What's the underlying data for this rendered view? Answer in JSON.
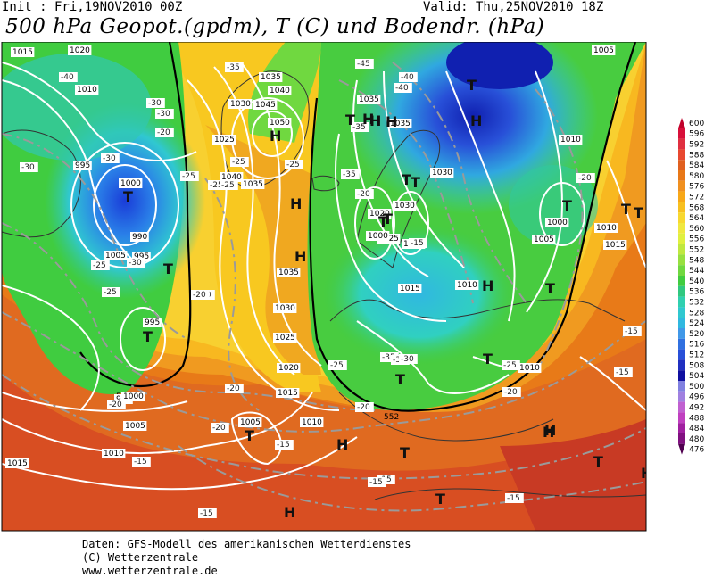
{
  "header": {
    "init": "Init : Fri,19NOV2010 00Z",
    "valid": "Valid: Thu,25NOV2010 18Z",
    "title": "500 hPa Geopot.(gpdm), T (C) und Bodendr. (hPa)"
  },
  "legend": {
    "values": [
      "600",
      "596",
      "592",
      "588",
      "584",
      "580",
      "576",
      "572",
      "568",
      "564",
      "560",
      "556",
      "552",
      "548",
      "544",
      "540",
      "536",
      "532",
      "528",
      "524",
      "520",
      "516",
      "512",
      "508",
      "504",
      "500",
      "496",
      "492",
      "488",
      "484",
      "480",
      "476"
    ],
    "colors": [
      "#c0002a",
      "#d8103a",
      "#e03040",
      "#e84830",
      "#e06020",
      "#e87818",
      "#f09020",
      "#f8a818",
      "#f8c020",
      "#f8d830",
      "#f0e840",
      "#e0f040",
      "#c0e840",
      "#98e040",
      "#70d840",
      "#40cc40",
      "#30c880",
      "#30d0b0",
      "#30c8d0",
      "#30b8e0",
      "#4098e8",
      "#3070e0",
      "#2850d8",
      "#2030c0",
      "#1010a0",
      "#8080e0",
      "#a080e0",
      "#c060d0",
      "#c040c0",
      "#a020a0",
      "#801080",
      "#500050"
    ]
  },
  "isobar_labels": [
    {
      "t": "1015"
    },
    {
      "t": "1020"
    },
    {
      "t": "1010"
    },
    {
      "t": "995"
    },
    {
      "t": "1000"
    },
    {
      "t": "1005"
    },
    {
      "t": "990"
    },
    {
      "t": "995"
    },
    {
      "t": "995"
    },
    {
      "t": "990"
    },
    {
      "t": "1000"
    },
    {
      "t": "1005"
    },
    {
      "t": "1010"
    },
    {
      "t": "1015"
    },
    {
      "t": "1025"
    },
    {
      "t": "1030"
    },
    {
      "t": "1035"
    },
    {
      "t": "1040"
    },
    {
      "t": "1045"
    },
    {
      "t": "1050"
    },
    {
      "t": "1040"
    },
    {
      "t": "1035"
    },
    {
      "t": "1035"
    },
    {
      "t": "1030"
    },
    {
      "t": "1025"
    },
    {
      "t": "1020"
    },
    {
      "t": "1015"
    },
    {
      "t": "1010"
    },
    {
      "t": "1005"
    },
    {
      "t": "1035"
    },
    {
      "t": "1035"
    },
    {
      "t": "1020"
    },
    {
      "t": "1030"
    },
    {
      "t": "1025"
    },
    {
      "t": "1030"
    },
    {
      "t": "1015"
    },
    {
      "t": "1010"
    },
    {
      "t": "1010"
    },
    {
      "t": "1005"
    },
    {
      "t": "1010"
    },
    {
      "t": "1000"
    },
    {
      "t": "1005"
    },
    {
      "t": "1010"
    },
    {
      "t": "1015"
    },
    {
      "t": "1000"
    },
    {
      "t": "1030"
    }
  ],
  "temp_labels": [
    {
      "t": "-40"
    },
    {
      "t": "-30"
    },
    {
      "t": "-30"
    },
    {
      "t": "-20"
    },
    {
      "t": "-30"
    },
    {
      "t": "-30"
    },
    {
      "t": "-25"
    },
    {
      "t": "-25"
    },
    {
      "t": "-25"
    },
    {
      "t": "-20"
    },
    {
      "t": "-35"
    },
    {
      "t": "-25"
    },
    {
      "t": "-25"
    },
    {
      "t": "-30"
    },
    {
      "t": "-20"
    },
    {
      "t": "-20"
    },
    {
      "t": "-20"
    },
    {
      "t": "-15"
    },
    {
      "t": "-15"
    },
    {
      "t": "-20"
    },
    {
      "t": "-15"
    },
    {
      "t": "-15"
    },
    {
      "t": "-15"
    },
    {
      "t": "-15"
    },
    {
      "t": "-20"
    },
    {
      "t": "-35"
    },
    {
      "t": "-40"
    },
    {
      "t": "-45"
    },
    {
      "t": "-40"
    },
    {
      "t": "-35"
    },
    {
      "t": "-35"
    },
    {
      "t": "-35"
    },
    {
      "t": "-30"
    },
    {
      "t": "-20"
    },
    {
      "t": "-25"
    },
    {
      "t": "-25"
    },
    {
      "t": "-20"
    },
    {
      "t": "-15"
    },
    {
      "t": "-15"
    },
    {
      "t": "-20"
    },
    {
      "t": "-15"
    },
    {
      "t": "-25"
    },
    {
      "t": "-25"
    }
  ],
  "pressure_centers": [
    {
      "t": "T"
    },
    {
      "t": "T"
    },
    {
      "t": "T"
    },
    {
      "t": "H"
    },
    {
      "t": "H"
    },
    {
      "t": "H"
    },
    {
      "t": "T"
    },
    {
      "t": "H"
    },
    {
      "t": "T"
    },
    {
      "t": "H"
    },
    {
      "t": "H"
    },
    {
      "t": "T"
    },
    {
      "t": "T"
    },
    {
      "t": "H"
    },
    {
      "t": "T"
    },
    {
      "t": "T"
    },
    {
      "t": "T"
    },
    {
      "t": "T"
    },
    {
      "t": "H"
    },
    {
      "t": "T"
    },
    {
      "t": "H"
    },
    {
      "t": "T"
    },
    {
      "t": "H"
    },
    {
      "t": "T"
    },
    {
      "t": "H"
    },
    {
      "t": "T"
    },
    {
      "t": "T"
    },
    {
      "t": "T"
    },
    {
      "t": "H"
    },
    {
      "t": "T"
    },
    {
      "t": "H"
    },
    {
      "t": "T"
    }
  ],
  "contour_552_labels": [
    {
      "t": "552"
    },
    {
      "t": "552"
    },
    {
      "t": "552"
    }
  ],
  "footer": {
    "line1": "Daten: GFS-Modell des amerikanischen Wetterdienstes",
    "line2": "(C) Wetterzentrale",
    "line3": "www.wetterzentrale.de"
  }
}
